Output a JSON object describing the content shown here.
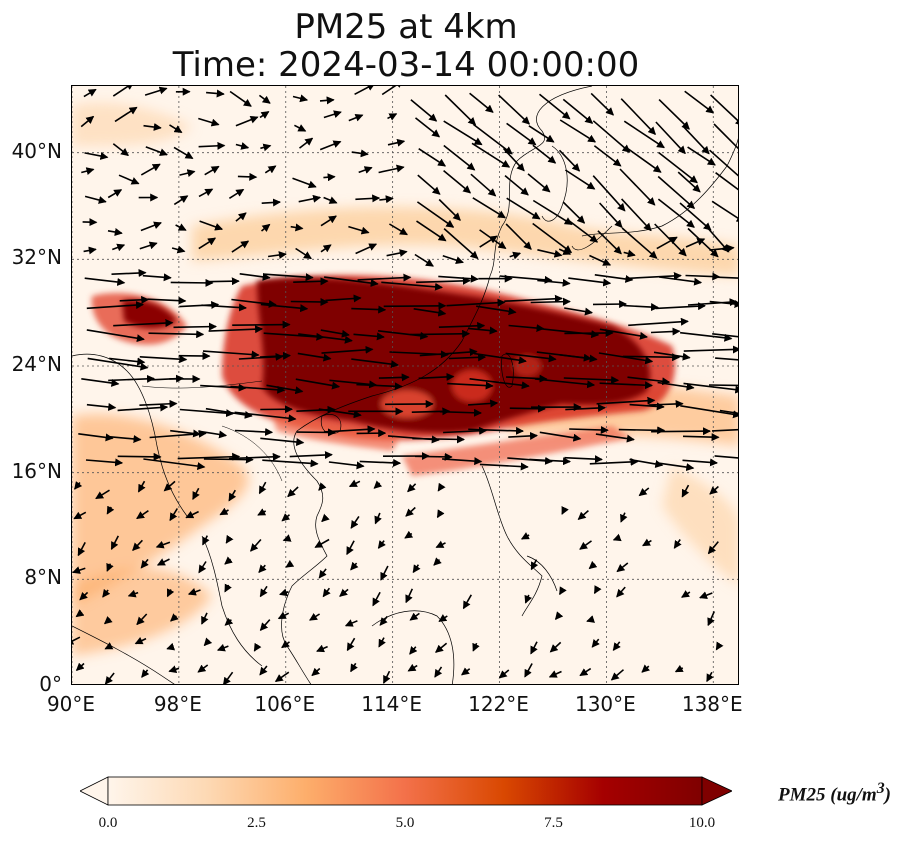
{
  "title_line1": "PM25 at 4km",
  "title_line2": "Time: 2024-03-14 00:00:00",
  "map": {
    "extent": {
      "lon_min": 90,
      "lon_max": 140,
      "lat_min": 0,
      "lat_max": 45
    },
    "lat_ticks": [
      {
        "value": 40,
        "label": "40°N"
      },
      {
        "value": 32,
        "label": "32°N"
      },
      {
        "value": 24,
        "label": "24°N"
      },
      {
        "value": 16,
        "label": "16°N"
      },
      {
        "value": 8,
        "label": "8°N"
      },
      {
        "value": 0,
        "label": "0°"
      }
    ],
    "lon_ticks": [
      {
        "value": 90,
        "label": "90°E"
      },
      {
        "value": 98,
        "label": "98°E"
      },
      {
        "value": 106,
        "label": "106°E"
      },
      {
        "value": 114,
        "label": "114°E"
      },
      {
        "value": 122,
        "label": "122°E"
      },
      {
        "value": 130,
        "label": "130°E"
      },
      {
        "value": 138,
        "label": "138°E"
      }
    ],
    "gridlines": true
  },
  "colorbar": {
    "label_text": "PM25 (ug/m",
    "label_sup": "3",
    "label_close": ")",
    "min": 0,
    "max": 10,
    "extend": "both",
    "ticks": [
      "0.0",
      "2.5",
      "5.0",
      "7.5",
      "10.0"
    ],
    "colors": [
      "#fff5eb",
      "#fdd9b4",
      "#fdae6b",
      "#f3714a",
      "#d94801",
      "#a50000",
      "#7f0000"
    ]
  },
  "colors": {
    "background": "#fff5eb",
    "high": "#7f0000",
    "coast": "#000000",
    "wind_arrow": "#000000"
  }
}
